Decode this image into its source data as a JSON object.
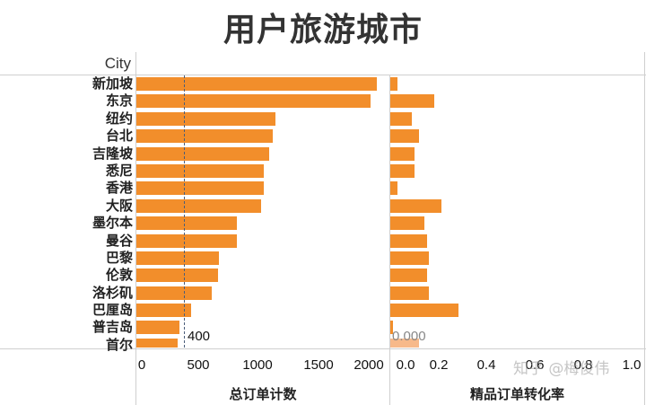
{
  "title": "用户旅游城市",
  "city_header": "City",
  "left_axis_title": "总订单计数",
  "right_axis_title": "精品订单转化率",
  "left_ref_label": "400",
  "right_ref_label": "0.000",
  "left_ticks": [
    "0",
    "500",
    "1000",
    "1500",
    "2000"
  ],
  "right_ticks": [
    "0.0",
    "0.2",
    "0.4",
    "0.6",
    "0.8",
    "1.0"
  ],
  "watermark": "知乎 @梅俊伟",
  "colors": {
    "bar": "#f28e2b",
    "highlight": "#f7b98a",
    "ref_line": "#4a5d7a"
  },
  "chart_data": [
    {
      "type": "bar",
      "orientation": "horizontal",
      "title": "用户旅游城市",
      "xlabel": "总订单计数",
      "ylabel": "City",
      "xlim": [
        0,
        2100
      ],
      "reference_line": {
        "value": 400,
        "label": "400",
        "style": "dashed"
      },
      "categories": [
        "新加坡",
        "东京",
        "纽约",
        "台北",
        "吉隆坡",
        "悉尼",
        "香港",
        "大阪",
        "墨尔本",
        "曼谷",
        "巴黎",
        "伦敦",
        "洛杉矶",
        "巴厘岛",
        "普吉岛",
        "首尔"
      ],
      "values": [
        2080,
        2020,
        1200,
        1180,
        1150,
        1100,
        1100,
        1080,
        870,
        870,
        715,
        705,
        650,
        475,
        370,
        355
      ]
    },
    {
      "type": "bar",
      "orientation": "horizontal",
      "xlabel": "精品订单转化率",
      "xlim": [
        0,
        1.0
      ],
      "reference_line": {
        "value": 0.0,
        "label": "0.000"
      },
      "categories": [
        "新加坡",
        "东京",
        "纽约",
        "台北",
        "吉隆坡",
        "悉尼",
        "香港",
        "大阪",
        "墨尔本",
        "曼谷",
        "巴黎",
        "伦敦",
        "洛杉矶",
        "巴厘岛",
        "普吉岛",
        "首尔"
      ],
      "values": [
        0.03,
        0.18,
        0.09,
        0.12,
        0.1,
        0.1,
        0.03,
        0.21,
        0.14,
        0.15,
        0.16,
        0.15,
        0.16,
        0.28,
        0.01,
        0.12
      ]
    }
  ]
}
